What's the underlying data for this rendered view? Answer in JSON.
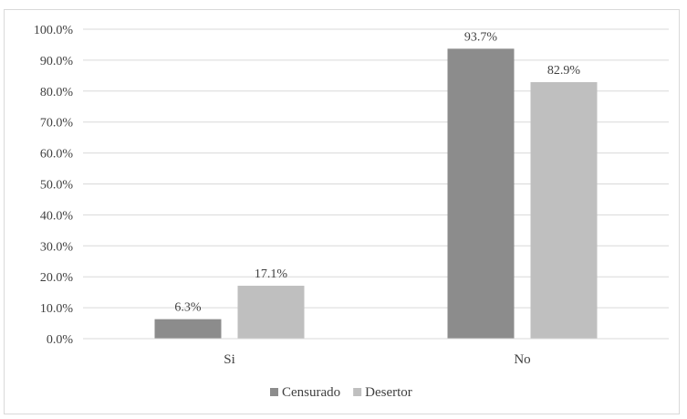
{
  "chart_data": {
    "type": "bar",
    "categories": [
      "Si",
      "No"
    ],
    "series": [
      {
        "name": "Censurado",
        "values": [
          6.3,
          93.7
        ],
        "labels": [
          "6.3%",
          "93.7%"
        ],
        "color": "#8c8c8c"
      },
      {
        "name": "Desertor",
        "values": [
          17.1,
          82.9
        ],
        "labels": [
          "17.1%",
          "82.9%"
        ],
        "color": "#bfbfbf"
      }
    ],
    "y_ticks": [
      "0.0%",
      "10.0%",
      "20.0%",
      "30.0%",
      "40.0%",
      "50.0%",
      "60.0%",
      "70.0%",
      "80.0%",
      "90.0%",
      "100.0%"
    ],
    "ylim": [
      0,
      100
    ],
    "title": "",
    "xlabel": "",
    "ylabel": "",
    "grid": true,
    "legend_position": "bottom"
  }
}
